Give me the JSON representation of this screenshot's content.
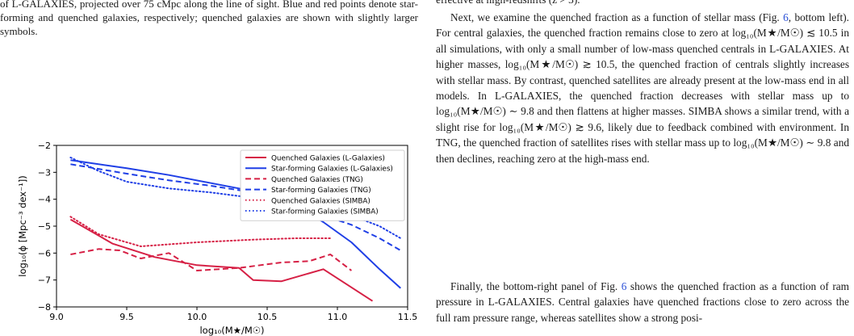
{
  "caption": {
    "text": "of L-GALAXIES, projected over 75 cMpc along the line of sight. Blue and red points denote star-forming and quenched galaxies, respectively; quenched galaxies are shown with slightly larger symbols."
  },
  "right_column": {
    "fragment": "effective at high-redshifts (z > 3).",
    "para1": [
      "Next, we examine the quenched fraction as a function of stellar mass (Fig. ",
      "6",
      ", bottom left). For central galaxies, the quenched fraction remains close to zero at log₁₀(M★/M☉) ≲ 10.5 in all simulations, with only a small number of low-mass quenched centrals in L-GALAXIES. At higher masses, log₁₀(M★/M☉) ≳ 10.5, the quenched fraction of centrals slightly increases with stellar mass. By contrast, quenched satellites are already present at the low-mass end in all models. In L-GALAXIES, the quenched fraction decreases with stellar mass up to log₁₀(M★/M☉) ∼ 9.8 and then flattens at higher masses. SIMBA shows a similar trend, with a slight rise for log₁₀(M★/M☉) ≳ 9.6, likely due to feedback combined with environment. In TNG, the quenched fraction of satellites rises with stellar mass up to log₁₀(M★/M☉) ∼ 9.8 and then declines, reaching zero at the high-mass end."
    ],
    "para2": [
      "Finally, the bottom-right panel of Fig. ",
      "6",
      " shows the quenched fraction as a function of ram pressure in L-GALAXIES. Central galaxies have quenched fractions close to zero across the full ram pressure range, whereas satellites show a strong posi-"
    ]
  },
  "chart_data": {
    "type": "line",
    "xlabel": "log₁₀(M★/M☉)",
    "ylabel": "log₁₀(ϕ [Mpc⁻³ dex⁻¹])",
    "xlim": [
      9.0,
      11.5
    ],
    "ylim": [
      -8,
      -2
    ],
    "xticks": [
      "9.0",
      "9.5",
      "10.0",
      "10.5",
      "11.0",
      "11.5"
    ],
    "yticks": [
      "−2",
      "−3",
      "−4",
      "−5",
      "−6",
      "−7",
      "−8"
    ],
    "grid": false,
    "legend_position": "top-right",
    "colors": {
      "quenched": "#d62045",
      "starforming": "#1f3fe6"
    },
    "series": [
      {
        "name": "Quenched Galaxies (L-Galaxies)",
        "color": "#d62045",
        "style": "solid",
        "x": [
          9.1,
          9.4,
          9.7,
          10.0,
          10.3,
          10.4,
          10.6,
          10.9,
          11.25
        ],
        "y": [
          -4.75,
          -5.65,
          -6.15,
          -6.45,
          -6.55,
          -7.0,
          -7.05,
          -6.6,
          -7.78
        ]
      },
      {
        "name": "Star-forming Galaxies (L-Galaxies)",
        "color": "#1f3fe6",
        "style": "solid",
        "x": [
          9.1,
          9.5,
          9.8,
          10.1,
          10.4,
          10.7,
          10.9,
          11.1,
          11.3,
          11.45
        ],
        "y": [
          -2.55,
          -2.85,
          -3.1,
          -3.4,
          -3.7,
          -4.2,
          -4.85,
          -5.6,
          -6.6,
          -7.3
        ]
      },
      {
        "name": "Quenched Galaxies (TNG)",
        "color": "#d62045",
        "style": "dashed",
        "x": [
          9.1,
          9.3,
          9.45,
          9.6,
          9.8,
          10.0,
          10.3,
          10.6,
          10.8,
          10.95,
          11.1
        ],
        "y": [
          -6.05,
          -5.85,
          -5.9,
          -6.2,
          -6.0,
          -6.65,
          -6.55,
          -6.35,
          -6.3,
          -6.05,
          -6.65
        ]
      },
      {
        "name": "Star-forming Galaxies (TNG)",
        "color": "#1f3fe6",
        "style": "dashed",
        "x": [
          9.1,
          9.5,
          9.8,
          10.1,
          10.4,
          10.7,
          10.9,
          11.1,
          11.3,
          11.45
        ],
        "y": [
          -2.7,
          -3.05,
          -3.3,
          -3.5,
          -3.75,
          -4.15,
          -4.6,
          -4.95,
          -5.45,
          -5.9
        ]
      },
      {
        "name": "Quenched Galaxies (SIMBA)",
        "color": "#d62045",
        "style": "dotted",
        "x": [
          9.1,
          9.3,
          9.6,
          10.0,
          10.4,
          10.7,
          10.95
        ],
        "y": [
          -4.65,
          -5.3,
          -5.75,
          -5.6,
          -5.5,
          -5.45,
          -5.45
        ]
      },
      {
        "name": "Star-forming Galaxies (SIMBA)",
        "color": "#1f3fe6",
        "style": "dotted",
        "x": [
          9.1,
          9.3,
          9.5,
          9.8,
          10.1,
          10.4,
          10.7,
          10.9,
          11.1,
          11.3,
          11.45
        ],
        "y": [
          -2.45,
          -2.95,
          -3.35,
          -3.6,
          -3.75,
          -3.95,
          -4.2,
          -4.5,
          -4.6,
          -5.0,
          -5.45
        ]
      }
    ]
  }
}
